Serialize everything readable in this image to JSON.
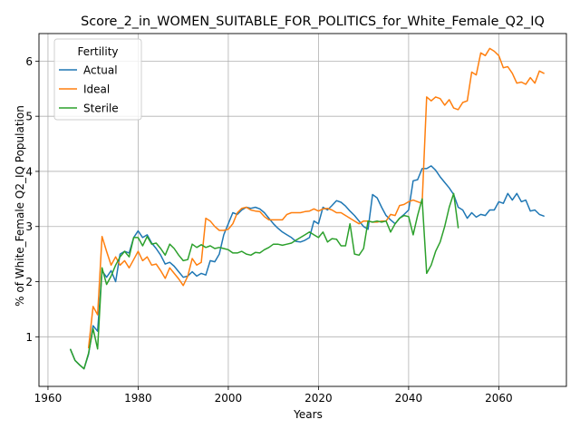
{
  "chart_data": {
    "type": "line",
    "title": "Score_2_in_WOMEN_SUITABLE_FOR_POLITICS_for_White_Female_Q2_IQ",
    "xlabel": "Years",
    "ylabel": "% of White_Female Q2_IQ Population",
    "xlim": [
      1958,
      2075
    ],
    "ylim": [
      0.1,
      6.5
    ],
    "xticks": [
      1960,
      1980,
      2000,
      2020,
      2040,
      2060
    ],
    "yticks": [
      1,
      2,
      3,
      4,
      5,
      6
    ],
    "grid": true,
    "legend": {
      "title": "Fertility",
      "position": "top-left"
    },
    "series": [
      {
        "name": "Actual",
        "color": "#1f77b4",
        "points": [
          [
            1965,
            0.77
          ],
          [
            1966,
            0.57
          ],
          [
            1967,
            0.49
          ],
          [
            1968,
            0.42
          ],
          [
            1969,
            0.68
          ],
          [
            1970,
            1.2
          ],
          [
            1971,
            1.1
          ],
          [
            1972,
            2.2
          ],
          [
            1973,
            2.08
          ],
          [
            1974,
            2.2
          ],
          [
            1975,
            2.0
          ],
          [
            1976,
            2.5
          ],
          [
            1977,
            2.55
          ],
          [
            1978,
            2.52
          ],
          [
            1979,
            2.8
          ],
          [
            1980,
            2.92
          ],
          [
            1981,
            2.8
          ],
          [
            1982,
            2.85
          ],
          [
            1983,
            2.7
          ],
          [
            1984,
            2.6
          ],
          [
            1985,
            2.48
          ],
          [
            1986,
            2.32
          ],
          [
            1987,
            2.35
          ],
          [
            1988,
            2.28
          ],
          [
            1989,
            2.18
          ],
          [
            1990,
            2.08
          ],
          [
            1991,
            2.1
          ],
          [
            1992,
            2.18
          ],
          [
            1993,
            2.1
          ],
          [
            1994,
            2.15
          ],
          [
            1995,
            2.12
          ],
          [
            1996,
            2.38
          ],
          [
            1997,
            2.36
          ],
          [
            1998,
            2.5
          ],
          [
            1999,
            2.85
          ],
          [
            2000,
            3.05
          ],
          [
            2001,
            3.25
          ],
          [
            2002,
            3.22
          ],
          [
            2003,
            3.3
          ],
          [
            2004,
            3.35
          ],
          [
            2005,
            3.33
          ],
          [
            2006,
            3.35
          ],
          [
            2007,
            3.32
          ],
          [
            2008,
            3.25
          ],
          [
            2009,
            3.15
          ],
          [
            2010,
            3.05
          ],
          [
            2011,
            2.97
          ],
          [
            2012,
            2.9
          ],
          [
            2013,
            2.85
          ],
          [
            2014,
            2.8
          ],
          [
            2015,
            2.73
          ],
          [
            2016,
            2.72
          ],
          [
            2017,
            2.75
          ],
          [
            2018,
            2.8
          ],
          [
            2019,
            3.1
          ],
          [
            2020,
            3.05
          ],
          [
            2021,
            3.35
          ],
          [
            2022,
            3.3
          ],
          [
            2023,
            3.38
          ],
          [
            2024,
            3.47
          ],
          [
            2025,
            3.44
          ],
          [
            2026,
            3.37
          ],
          [
            2027,
            3.28
          ],
          [
            2028,
            3.2
          ],
          [
            2029,
            3.1
          ],
          [
            2030,
            3.0
          ],
          [
            2031,
            2.95
          ],
          [
            2032,
            3.58
          ],
          [
            2033,
            3.52
          ],
          [
            2034,
            3.35
          ],
          [
            2035,
            3.2
          ],
          [
            2036,
            3.12
          ],
          [
            2037,
            3.05
          ],
          [
            2038,
            3.15
          ],
          [
            2039,
            3.22
          ],
          [
            2040,
            3.3
          ],
          [
            2041,
            3.83
          ],
          [
            2042,
            3.85
          ],
          [
            2043,
            4.05
          ],
          [
            2044,
            4.05
          ],
          [
            2045,
            4.1
          ],
          [
            2046,
            4.02
          ],
          [
            2047,
            3.9
          ],
          [
            2048,
            3.8
          ],
          [
            2049,
            3.7
          ],
          [
            2050,
            3.58
          ],
          [
            2051,
            3.35
          ],
          [
            2052,
            3.3
          ],
          [
            2053,
            3.15
          ],
          [
            2054,
            3.25
          ],
          [
            2055,
            3.17
          ],
          [
            2056,
            3.22
          ],
          [
            2057,
            3.2
          ],
          [
            2058,
            3.3
          ],
          [
            2059,
            3.3
          ],
          [
            2060,
            3.45
          ],
          [
            2061,
            3.42
          ],
          [
            2062,
            3.6
          ],
          [
            2063,
            3.48
          ],
          [
            2064,
            3.6
          ],
          [
            2065,
            3.45
          ],
          [
            2066,
            3.48
          ],
          [
            2067,
            3.28
          ],
          [
            2068,
            3.3
          ],
          [
            2069,
            3.22
          ],
          [
            2070,
            3.19
          ]
        ]
      },
      {
        "name": "Ideal",
        "color": "#ff7f0e",
        "points": [
          [
            1969,
            0.8
          ],
          [
            1970,
            1.55
          ],
          [
            1971,
            1.4
          ],
          [
            1972,
            2.82
          ],
          [
            1973,
            2.55
          ],
          [
            1974,
            2.3
          ],
          [
            1975,
            2.45
          ],
          [
            1976,
            2.3
          ],
          [
            1977,
            2.38
          ],
          [
            1978,
            2.25
          ],
          [
            1979,
            2.4
          ],
          [
            1980,
            2.55
          ],
          [
            1981,
            2.38
          ],
          [
            1982,
            2.45
          ],
          [
            1983,
            2.3
          ],
          [
            1984,
            2.32
          ],
          [
            1985,
            2.2
          ],
          [
            1986,
            2.06
          ],
          [
            1987,
            2.25
          ],
          [
            1988,
            2.15
          ],
          [
            1989,
            2.05
          ],
          [
            1990,
            1.93
          ],
          [
            1991,
            2.1
          ],
          [
            1992,
            2.42
          ],
          [
            1993,
            2.3
          ],
          [
            1994,
            2.35
          ],
          [
            1995,
            3.15
          ],
          [
            1996,
            3.1
          ],
          [
            1997,
            3.0
          ],
          [
            1998,
            2.93
          ],
          [
            1999,
            2.93
          ],
          [
            2000,
            2.95
          ],
          [
            2001,
            3.05
          ],
          [
            2002,
            3.25
          ],
          [
            2003,
            3.33
          ],
          [
            2004,
            3.35
          ],
          [
            2005,
            3.3
          ],
          [
            2006,
            3.28
          ],
          [
            2007,
            3.27
          ],
          [
            2008,
            3.18
          ],
          [
            2009,
            3.12
          ],
          [
            2010,
            3.12
          ],
          [
            2011,
            3.12
          ],
          [
            2012,
            3.12
          ],
          [
            2013,
            3.22
          ],
          [
            2014,
            3.25
          ],
          [
            2015,
            3.25
          ],
          [
            2016,
            3.25
          ],
          [
            2017,
            3.27
          ],
          [
            2018,
            3.28
          ],
          [
            2019,
            3.32
          ],
          [
            2020,
            3.28
          ],
          [
            2021,
            3.32
          ],
          [
            2022,
            3.33
          ],
          [
            2023,
            3.3
          ],
          [
            2024,
            3.25
          ],
          [
            2025,
            3.25
          ],
          [
            2026,
            3.2
          ],
          [
            2027,
            3.15
          ],
          [
            2028,
            3.1
          ],
          [
            2029,
            3.05
          ],
          [
            2030,
            3.1
          ],
          [
            2031,
            3.1
          ],
          [
            2032,
            3.08
          ],
          [
            2033,
            3.08
          ],
          [
            2034,
            3.1
          ],
          [
            2035,
            3.1
          ],
          [
            2036,
            3.22
          ],
          [
            2037,
            3.2
          ],
          [
            2038,
            3.38
          ],
          [
            2039,
            3.4
          ],
          [
            2040,
            3.45
          ],
          [
            2041,
            3.48
          ],
          [
            2042,
            3.45
          ],
          [
            2043,
            3.42
          ],
          [
            2044,
            5.35
          ],
          [
            2045,
            5.28
          ],
          [
            2046,
            5.35
          ],
          [
            2047,
            5.32
          ],
          [
            2048,
            5.2
          ],
          [
            2049,
            5.3
          ],
          [
            2050,
            5.15
          ],
          [
            2051,
            5.12
          ],
          [
            2052,
            5.25
          ],
          [
            2053,
            5.28
          ],
          [
            2054,
            5.8
          ],
          [
            2055,
            5.75
          ],
          [
            2056,
            6.15
          ],
          [
            2057,
            6.1
          ],
          [
            2058,
            6.23
          ],
          [
            2059,
            6.18
          ],
          [
            2060,
            6.1
          ],
          [
            2061,
            5.88
          ],
          [
            2062,
            5.9
          ],
          [
            2063,
            5.78
          ],
          [
            2064,
            5.6
          ],
          [
            2065,
            5.62
          ],
          [
            2066,
            5.58
          ],
          [
            2067,
            5.7
          ],
          [
            2068,
            5.6
          ],
          [
            2069,
            5.82
          ],
          [
            2070,
            5.78
          ]
        ]
      },
      {
        "name": "Sterile",
        "color": "#2ca02c",
        "points": [
          [
            1965,
            0.77
          ],
          [
            1966,
            0.57
          ],
          [
            1967,
            0.49
          ],
          [
            1968,
            0.42
          ],
          [
            1969,
            0.7
          ],
          [
            1970,
            1.15
          ],
          [
            1971,
            0.78
          ],
          [
            1972,
            2.25
          ],
          [
            1973,
            1.95
          ],
          [
            1974,
            2.1
          ],
          [
            1975,
            2.3
          ],
          [
            1976,
            2.45
          ],
          [
            1977,
            2.55
          ],
          [
            1978,
            2.45
          ],
          [
            1979,
            2.8
          ],
          [
            1980,
            2.8
          ],
          [
            1981,
            2.65
          ],
          [
            1982,
            2.82
          ],
          [
            1983,
            2.68
          ],
          [
            1984,
            2.7
          ],
          [
            1985,
            2.6
          ],
          [
            1986,
            2.48
          ],
          [
            1987,
            2.68
          ],
          [
            1988,
            2.6
          ],
          [
            1989,
            2.48
          ],
          [
            1990,
            2.38
          ],
          [
            1991,
            2.4
          ],
          [
            1992,
            2.68
          ],
          [
            1993,
            2.62
          ],
          [
            1994,
            2.67
          ],
          [
            1995,
            2.62
          ],
          [
            1996,
            2.65
          ],
          [
            1997,
            2.6
          ],
          [
            1998,
            2.62
          ],
          [
            1999,
            2.6
          ],
          [
            2000,
            2.58
          ],
          [
            2001,
            2.52
          ],
          [
            2002,
            2.52
          ],
          [
            2003,
            2.55
          ],
          [
            2004,
            2.5
          ],
          [
            2005,
            2.48
          ],
          [
            2006,
            2.53
          ],
          [
            2007,
            2.52
          ],
          [
            2008,
            2.58
          ],
          [
            2009,
            2.62
          ],
          [
            2010,
            2.68
          ],
          [
            2011,
            2.68
          ],
          [
            2012,
            2.66
          ],
          [
            2013,
            2.68
          ],
          [
            2014,
            2.7
          ],
          [
            2015,
            2.75
          ],
          [
            2016,
            2.8
          ],
          [
            2017,
            2.85
          ],
          [
            2018,
            2.9
          ],
          [
            2019,
            2.85
          ],
          [
            2020,
            2.8
          ],
          [
            2021,
            2.9
          ],
          [
            2022,
            2.72
          ],
          [
            2023,
            2.78
          ],
          [
            2024,
            2.77
          ],
          [
            2025,
            2.65
          ],
          [
            2026,
            2.65
          ],
          [
            2027,
            3.05
          ],
          [
            2028,
            2.5
          ],
          [
            2029,
            2.48
          ],
          [
            2030,
            2.6
          ],
          [
            2031,
            3.1
          ],
          [
            2032,
            3.08
          ],
          [
            2033,
            3.1
          ],
          [
            2034,
            3.08
          ],
          [
            2035,
            3.1
          ],
          [
            2036,
            2.9
          ],
          [
            2037,
            3.05
          ],
          [
            2038,
            3.15
          ],
          [
            2039,
            3.2
          ],
          [
            2040,
            3.18
          ],
          [
            2041,
            2.85
          ],
          [
            2042,
            3.2
          ],
          [
            2043,
            3.5
          ],
          [
            2044,
            2.15
          ],
          [
            2045,
            2.3
          ],
          [
            2046,
            2.55
          ],
          [
            2047,
            2.72
          ],
          [
            2048,
            3.0
          ],
          [
            2049,
            3.35
          ],
          [
            2050,
            3.6
          ],
          [
            2051,
            2.98
          ]
        ]
      }
    ]
  }
}
